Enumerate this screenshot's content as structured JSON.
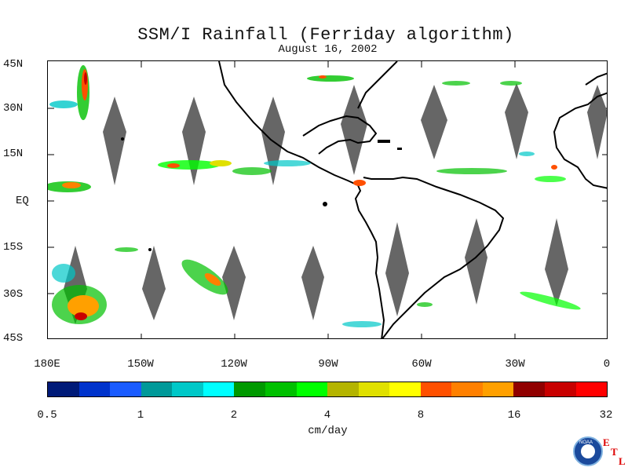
{
  "title": "SSM/I Rainfall (Ferriday algorithm)",
  "subtitle": "August 16, 2002",
  "lat_labels": [
    "45N",
    "30N",
    "15N",
    "EQ",
    "15S",
    "30S",
    "45S"
  ],
  "lon_labels": [
    "180E",
    "150W",
    "120W",
    "90W",
    "60W",
    "30W",
    "0"
  ],
  "colorbar": {
    "ticks": [
      "0.5",
      "1",
      "2",
      "4",
      "8",
      "16",
      "32"
    ],
    "units": "cm/day",
    "colors": [
      "#001a78",
      "#0033cc",
      "#1a5cff",
      "#009999",
      "#00c8c8",
      "#00ffff",
      "#009900",
      "#00c000",
      "#00ff00",
      "#b4b400",
      "#e0e000",
      "#ffff00",
      "#ff5000",
      "#ff8000",
      "#ffa000",
      "#900000",
      "#c80000",
      "#ff0000"
    ]
  },
  "logo": {
    "text": "NOAA",
    "etl": [
      "E",
      "T",
      "L"
    ]
  },
  "colors": {
    "gap_swath": "#666666",
    "coastline": "#000000"
  }
}
